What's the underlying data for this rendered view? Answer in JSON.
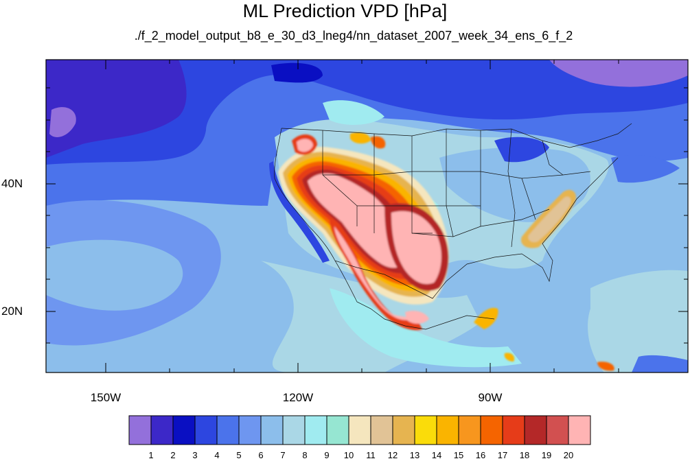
{
  "title": "ML Prediction VPD [hPa]",
  "subtitle": "./f_2_model_output_b8_e_30_d3_lneg4/nn_dataset_2007_week_34_ens_6_f_2",
  "map": {
    "projection": "cylindrical equidistant",
    "lon_range": [
      -159.4,
      -60.5
    ],
    "lat_range": [
      10.5,
      60.0
    ],
    "lat_labels": [
      {
        "value": 40,
        "text": "40N"
      },
      {
        "value": 20,
        "text": "20N"
      }
    ],
    "lon_labels": [
      {
        "value": -150,
        "text": "150W"
      },
      {
        "value": -120,
        "text": "120W"
      },
      {
        "value": -90,
        "text": "90W"
      }
    ]
  },
  "colorbar": {
    "colors": [
      "#9370db",
      "#3c28c8",
      "#0a0fc2",
      "#2d46e0",
      "#4b73eb",
      "#6e96f0",
      "#8cbeeb",
      "#aad7e6",
      "#a0ebf0",
      "#96e6d2",
      "#f5e6be",
      "#e1c396",
      "#e6b450",
      "#fadc0a",
      "#fab400",
      "#f7961e",
      "#f56400",
      "#e63c19",
      "#b42828",
      "#d25050",
      "#ffb4b4"
    ],
    "labels": [
      "1",
      "2",
      "3",
      "4",
      "5",
      "6",
      "7",
      "8",
      "9",
      "10",
      "11",
      "12",
      "13",
      "14",
      "15",
      "16",
      "17",
      "18",
      "19",
      "20"
    ]
  }
}
